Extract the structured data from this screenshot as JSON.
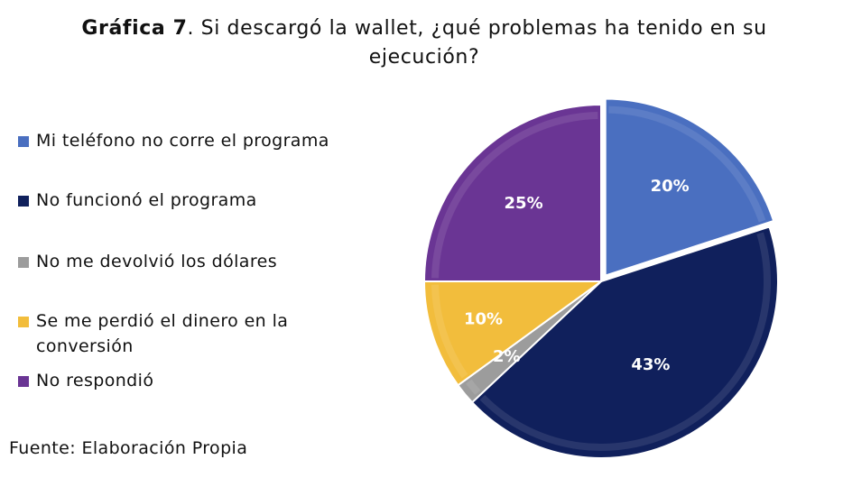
{
  "title_prefix": "Gráfica 7",
  "title_rest": ". Si descargó la wallet, ¿qué problemas ha tenido en su ejecución?",
  "source": "Fuente: Elaboración Propia",
  "colors": {
    "s1": "#4a6fc0",
    "s2": "#10205c",
    "s3": "#9c9c9c",
    "s4": "#f2bd3c",
    "s5": "#6a3594"
  },
  "chart_data": {
    "type": "pie",
    "title": "Gráfica 7. Si descargó la wallet, ¿qué problemas ha tenido en su ejecución?",
    "legend_position": "left",
    "slices": [
      {
        "name": "Mi teléfono no corre el programa",
        "value": 20,
        "label": "20%",
        "color": "#4a6fc0"
      },
      {
        "name": "No funcionó el programa",
        "value": 43,
        "label": "43%",
        "color": "#10205c"
      },
      {
        "name": "No me devolvió los dólares",
        "value": 2,
        "label": "2%",
        "color": "#9c9c9c"
      },
      {
        "name": "Se me perdió el dinero en la conversión",
        "value": 10,
        "label": "10%",
        "color": "#f2bd3c"
      },
      {
        "name": "No respondió",
        "value": 25,
        "label": "25%",
        "color": "#6a3594"
      }
    ]
  }
}
